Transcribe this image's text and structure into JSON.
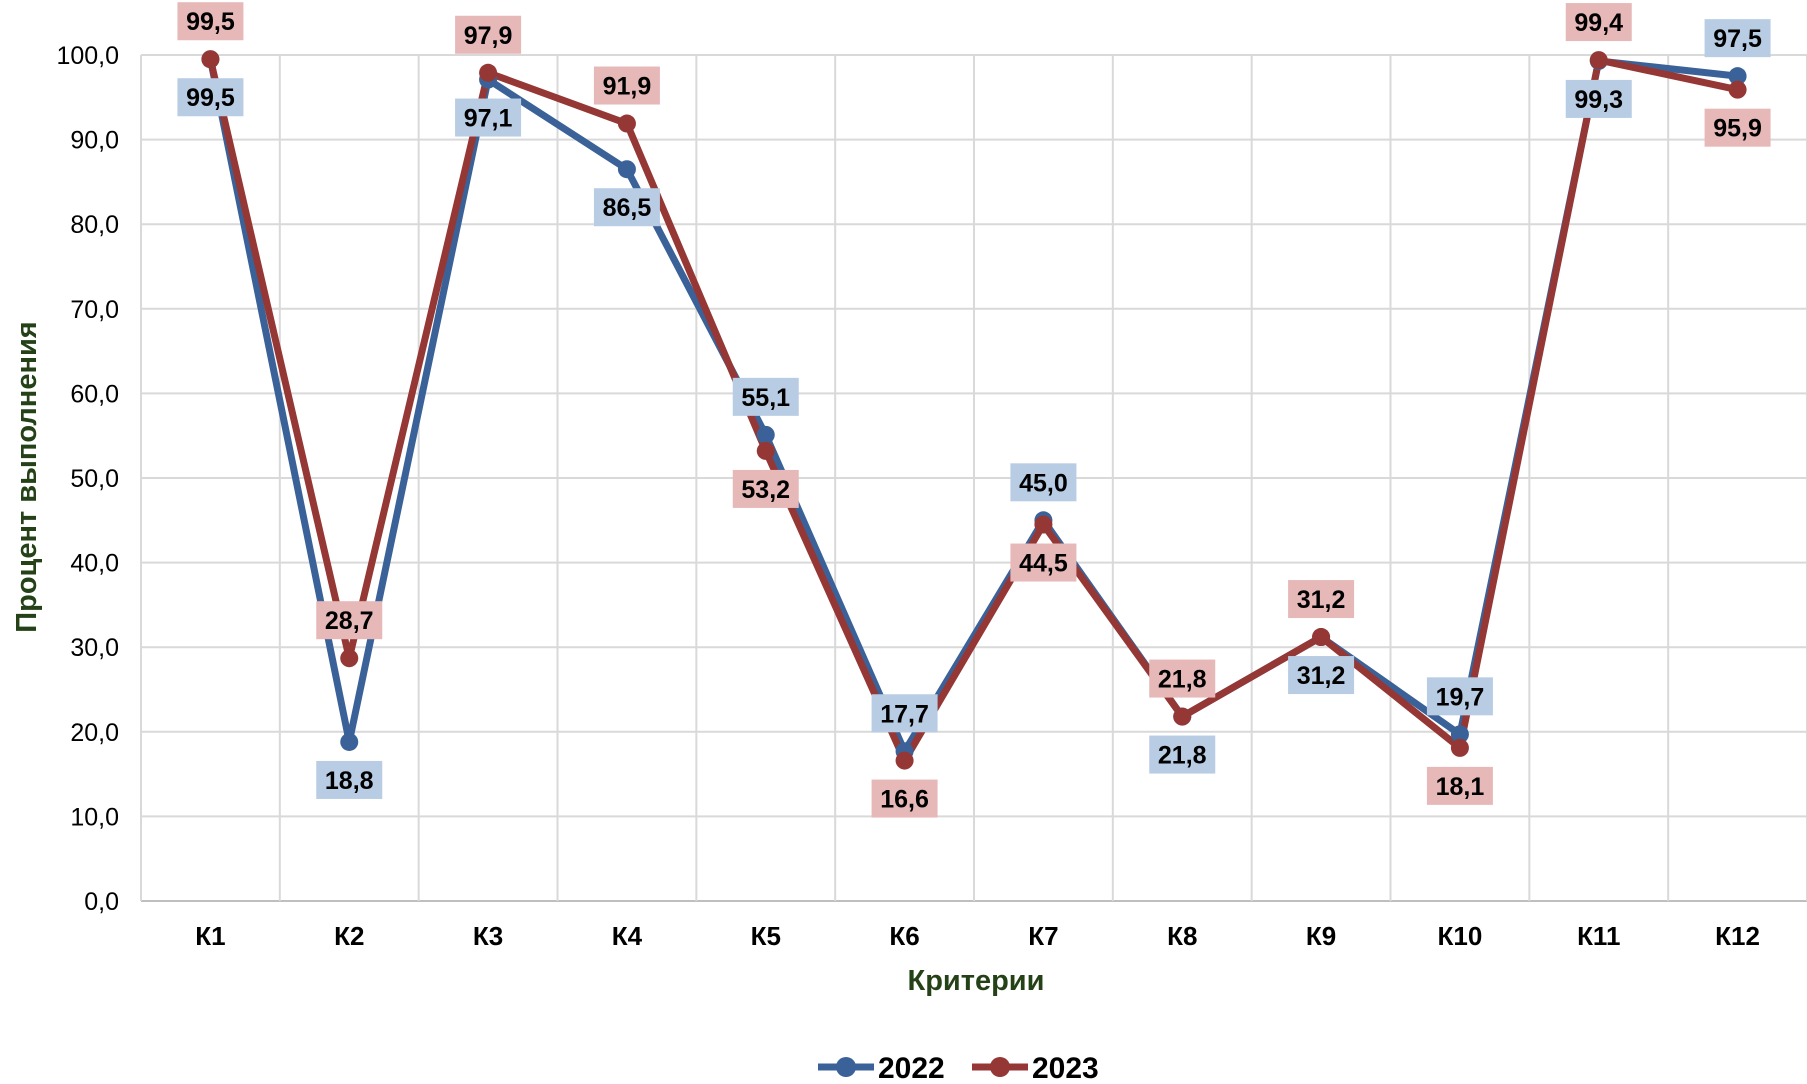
{
  "chart_data": {
    "type": "line",
    "title": "",
    "xlabel": "Критерии",
    "ylabel": "Процент выполнения",
    "categories": [
      "К1",
      "К2",
      "К3",
      "К4",
      "К5",
      "К6",
      "К7",
      "К8",
      "К9",
      "К10",
      "К11",
      "К12"
    ],
    "ylim": [
      0,
      100
    ],
    "ytick_step": 10,
    "ytick_labels": [
      "0,0",
      "10,0",
      "20,0",
      "30,0",
      "40,0",
      "50,0",
      "60,0",
      "70,0",
      "80,0",
      "90,0",
      "100,0"
    ],
    "grid": true,
    "legend_position": "bottom",
    "series": [
      {
        "name": "2022",
        "color": "#3B6298",
        "label_bg": "#B8CCE4",
        "values": [
          99.5,
          18.8,
          97.1,
          86.5,
          55.1,
          17.7,
          45.0,
          21.8,
          31.2,
          19.7,
          99.3,
          97.5
        ],
        "labels": [
          "99,5",
          "18,8",
          "97,1",
          "86,5",
          "55,1",
          "17,7",
          "45,0",
          "21,8",
          "31,2",
          "19,7",
          "99,3",
          "97,5"
        ],
        "label_side": [
          "below",
          "below",
          "below",
          "below",
          "above",
          "above",
          "above",
          "below",
          "below",
          "above",
          "below",
          "above"
        ]
      },
      {
        "name": "2023",
        "color": "#953735",
        "label_bg": "#E6B9B8",
        "values": [
          99.5,
          28.7,
          97.9,
          91.9,
          53.2,
          16.6,
          44.5,
          21.8,
          31.2,
          18.1,
          99.4,
          95.9
        ],
        "labels": [
          "99,5",
          "28,7",
          "97,9",
          "91,9",
          "53,2",
          "16,6",
          "44,5",
          "21,8",
          "31,2",
          "18,1",
          "99,4",
          "95,9"
        ],
        "label_side": [
          "above",
          "above",
          "above",
          "above",
          "below",
          "below",
          "below",
          "above",
          "above",
          "below",
          "above",
          "below"
        ]
      }
    ]
  }
}
